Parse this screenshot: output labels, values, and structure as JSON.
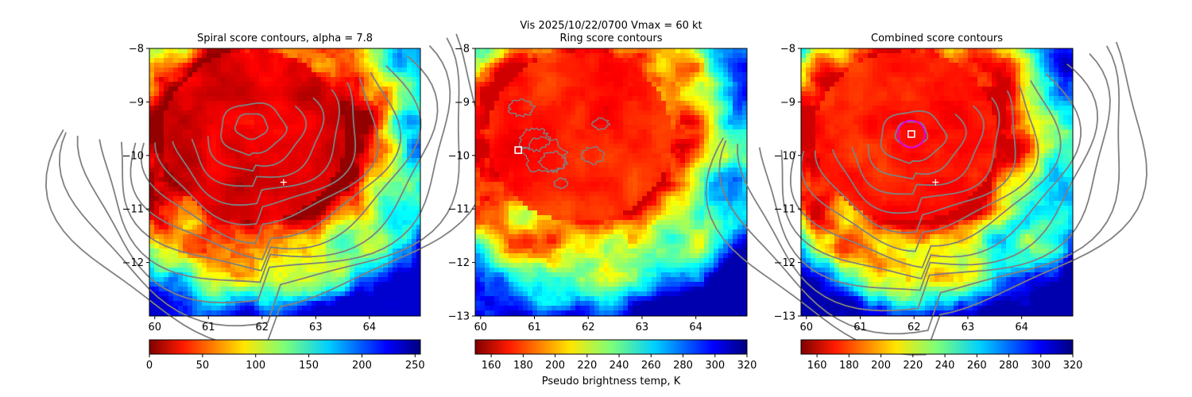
{
  "figure": {
    "suptitle_line1": "Vis  2025/10/22/0700    Vmax = 60 kt"
  },
  "chart_data": [
    {
      "type": "heatmap",
      "title": "Spiral score contours, alpha =  7.8",
      "xlim": [
        59.9,
        64.95
      ],
      "ylim": [
        -13.0,
        -8.0
      ],
      "xticks": [
        60,
        61,
        62,
        63,
        64
      ],
      "xtick_labels": [
        "60",
        "61",
        "62",
        "63",
        "64"
      ],
      "yticks": [
        -8,
        -9,
        -10,
        -11,
        -12
      ],
      "ytick_labels": [
        "−8",
        "−9",
        "−10",
        "−11",
        "−12"
      ],
      "colormap": "jet",
      "colormap_reversed": true,
      "colorbar": {
        "min": 0,
        "max": 255,
        "ticks": [
          0,
          50,
          100,
          150,
          200,
          250
        ],
        "tick_labels": [
          "0",
          "50",
          "100",
          "150",
          "200",
          "250"
        ],
        "label": ""
      },
      "field_center": [
        61.8,
        -9.6
      ],
      "contour_center": [
        61.8,
        -9.45
      ],
      "contour_color": "#808080",
      "marker_plus": [
        62.4,
        -10.5
      ],
      "marker_square": null,
      "marker_circle": null
    },
    {
      "type": "heatmap",
      "title": "Ring score contours",
      "xlim": [
        59.9,
        64.95
      ],
      "ylim": [
        -13.0,
        -8.0
      ],
      "xticks": [
        60,
        61,
        62,
        63,
        64
      ],
      "xtick_labels": [
        "60",
        "61",
        "62",
        "63",
        "64"
      ],
      "yticks": [
        -8,
        -9,
        -10,
        -11,
        -12,
        -13
      ],
      "ytick_labels": [
        "−8",
        "−9",
        "−10",
        "−11",
        "−12",
        "−13"
      ],
      "colormap": "jet",
      "colormap_reversed": false,
      "colorbar": {
        "min": 150,
        "max": 320,
        "ticks": [
          160,
          180,
          200,
          220,
          240,
          260,
          280,
          300,
          320
        ],
        "tick_labels": [
          "160",
          "180",
          "200",
          "220",
          "240",
          "260",
          "280",
          "300",
          "320"
        ],
        "label": "Pseudo brightness temp, K"
      },
      "field_center": [
        61.8,
        -9.6
      ],
      "contour_center": [
        61.2,
        -10.0
      ],
      "contour_color": "#808080",
      "marker_plus": null,
      "marker_square": [
        60.7,
        -9.9
      ],
      "marker_circle": null
    },
    {
      "type": "heatmap",
      "title": "Combined score contours",
      "xlim": [
        59.9,
        64.95
      ],
      "ylim": [
        -13.0,
        -8.0
      ],
      "xticks": [
        60,
        61,
        62,
        63,
        64
      ],
      "xtick_labels": [
        "60",
        "61",
        "62",
        "63",
        "64"
      ],
      "yticks": [
        -8,
        -9,
        -10,
        -11,
        -12,
        -13
      ],
      "ytick_labels": [
        "−8",
        "−9",
        "−10",
        "−11",
        "−12",
        "−13"
      ],
      "colormap": "jet",
      "colormap_reversed": false,
      "colorbar": {
        "min": 150,
        "max": 320,
        "ticks": [
          160,
          180,
          200,
          220,
          240,
          260,
          280,
          300,
          320
        ],
        "tick_labels": [
          "160",
          "180",
          "200",
          "220",
          "240",
          "260",
          "280",
          "300",
          "320"
        ],
        "label": ""
      },
      "field_center": [
        61.8,
        -9.6
      ],
      "contour_center": [
        61.95,
        -9.6
      ],
      "contour_color": "#808080",
      "marker_plus": [
        62.4,
        -10.5
      ],
      "marker_square": [
        61.95,
        -9.6
      ],
      "marker_circle": [
        61.95,
        -9.6
      ]
    }
  ]
}
